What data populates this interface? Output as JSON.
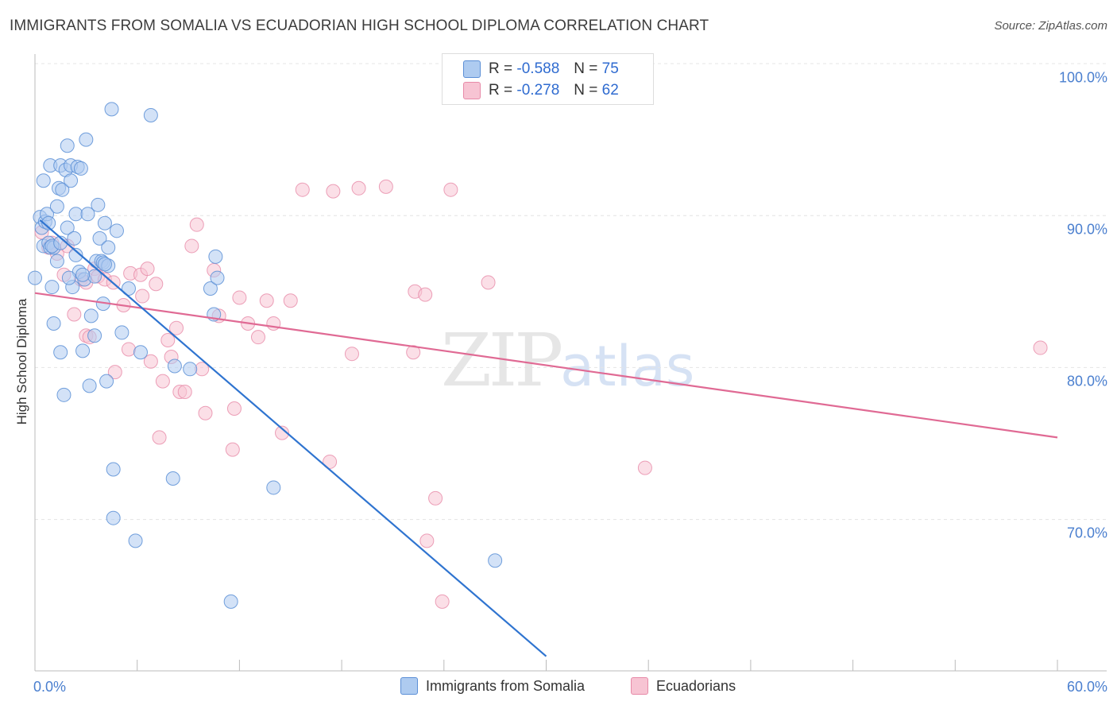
{
  "header": {
    "title": "IMMIGRANTS FROM SOMALIA VS ECUADORIAN HIGH SCHOOL DIPLOMA CORRELATION CHART",
    "source": "Source: ZipAtlas.com"
  },
  "watermark": {
    "zip": "ZIP",
    "atlas": "atlas"
  },
  "legend": {
    "somalia": {
      "r_label": "R = ",
      "r_value": "-0.588",
      "n_label": "N = ",
      "n_value": "75"
    },
    "ecuador": {
      "r_label": "R = ",
      "r_value": "-0.278",
      "n_label": "N = ",
      "n_value": "62"
    }
  },
  "colors": {
    "somalia_fill": "#aecbf0",
    "somalia_stroke": "#5b8fd6",
    "somalia_line": "#2f74d0",
    "ecuador_fill": "#f7c4d3",
    "ecuador_stroke": "#e78aa8",
    "ecuador_line": "#e06a94"
  },
  "chart_data": {
    "type": "scatter",
    "title": "IMMIGRANTS FROM SOMALIA VS ECUADORIAN HIGH SCHOOL DIPLOMA CORRELATION CHART",
    "xlabel": "",
    "ylabel": "High School Diploma",
    "xlim": [
      0,
      60
    ],
    "ylim": [
      61,
      101.5
    ],
    "x_tick_labels": [
      "0.0%",
      "60.0%"
    ],
    "y_ticks": [
      70,
      80,
      90,
      100
    ],
    "y_tick_labels": [
      "70.0%",
      "80.0%",
      "90.0%",
      "100.0%"
    ],
    "grid": true,
    "legend_position": "top-center",
    "series": [
      {
        "name": "Immigrants from Somalia",
        "trend": {
          "x": [
            0.3,
            30.0
          ],
          "y": [
            89.7,
            61.0
          ]
        },
        "points": [
          [
            0.0,
            85.9
          ],
          [
            0.3,
            89.9
          ],
          [
            0.4,
            89.2
          ],
          [
            0.5,
            92.3
          ],
          [
            0.5,
            88.0
          ],
          [
            0.6,
            89.6
          ],
          [
            0.7,
            90.1
          ],
          [
            0.8,
            88.2
          ],
          [
            0.9,
            87.9
          ],
          [
            0.9,
            93.3
          ],
          [
            1.0,
            85.3
          ],
          [
            1.1,
            82.9
          ],
          [
            1.1,
            87.9
          ],
          [
            1.3,
            87.0
          ],
          [
            1.3,
            90.6
          ],
          [
            1.4,
            91.8
          ],
          [
            1.5,
            81.0
          ],
          [
            1.5,
            93.3
          ],
          [
            1.6,
            91.7
          ],
          [
            1.7,
            78.2
          ],
          [
            1.8,
            93.0
          ],
          [
            1.9,
            89.2
          ],
          [
            1.9,
            94.6
          ],
          [
            2.1,
            92.3
          ],
          [
            2.1,
            93.3
          ],
          [
            2.2,
            85.3
          ],
          [
            2.3,
            88.5
          ],
          [
            2.4,
            90.1
          ],
          [
            2.4,
            87.4
          ],
          [
            2.5,
            93.2
          ],
          [
            2.6,
            86.3
          ],
          [
            2.7,
            93.1
          ],
          [
            2.8,
            81.1
          ],
          [
            2.9,
            85.8
          ],
          [
            3.0,
            95.0
          ],
          [
            3.1,
            90.1
          ],
          [
            3.2,
            78.8
          ],
          [
            3.3,
            83.4
          ],
          [
            3.5,
            86.0
          ],
          [
            3.6,
            87.0
          ],
          [
            3.7,
            90.7
          ],
          [
            3.8,
            88.5
          ],
          [
            3.9,
            87.0
          ],
          [
            4.0,
            86.9
          ],
          [
            4.0,
            84.2
          ],
          [
            4.1,
            89.5
          ],
          [
            4.2,
            79.1
          ],
          [
            4.3,
            87.9
          ],
          [
            4.3,
            86.7
          ],
          [
            4.5,
            97.0
          ],
          [
            4.6,
            73.3
          ],
          [
            4.6,
            70.1
          ],
          [
            4.8,
            89.0
          ],
          [
            5.1,
            82.3
          ],
          [
            5.5,
            85.2
          ],
          [
            5.9,
            68.6
          ],
          [
            6.2,
            81.0
          ],
          [
            6.8,
            96.6
          ],
          [
            8.2,
            80.1
          ],
          [
            8.1,
            72.7
          ],
          [
            9.1,
            79.9
          ],
          [
            10.3,
            85.2
          ],
          [
            10.5,
            83.5
          ],
          [
            10.6,
            87.3
          ],
          [
            10.7,
            85.9
          ],
          [
            11.5,
            64.6
          ],
          [
            14.0,
            72.1
          ],
          [
            27.0,
            67.3
          ],
          [
            0.8,
            89.5
          ],
          [
            1.0,
            88.0
          ],
          [
            2.0,
            85.9
          ],
          [
            1.5,
            88.2
          ],
          [
            3.5,
            82.1
          ],
          [
            2.8,
            86.1
          ],
          [
            4.1,
            86.8
          ]
        ]
      },
      {
        "name": "Ecuadorians",
        "trend": {
          "x": [
            0.0,
            60.0
          ],
          "y": [
            84.9,
            75.4
          ]
        },
        "points": [
          [
            0.4,
            88.9
          ],
          [
            0.8,
            87.9
          ],
          [
            1.0,
            88.2
          ],
          [
            1.3,
            87.5
          ],
          [
            1.7,
            86.1
          ],
          [
            2.3,
            83.5
          ],
          [
            2.7,
            85.8
          ],
          [
            3.0,
            82.1
          ],
          [
            3.2,
            82.0
          ],
          [
            3.5,
            86.5
          ],
          [
            3.7,
            86.0
          ],
          [
            4.1,
            85.8
          ],
          [
            4.6,
            85.6
          ],
          [
            4.7,
            79.7
          ],
          [
            5.2,
            84.1
          ],
          [
            5.5,
            81.2
          ],
          [
            5.6,
            86.2
          ],
          [
            6.2,
            86.1
          ],
          [
            6.3,
            84.7
          ],
          [
            6.6,
            86.5
          ],
          [
            6.8,
            80.4
          ],
          [
            7.1,
            85.5
          ],
          [
            7.3,
            75.4
          ],
          [
            7.5,
            79.1
          ],
          [
            7.8,
            81.8
          ],
          [
            8.0,
            80.7
          ],
          [
            8.3,
            82.6
          ],
          [
            8.5,
            78.4
          ],
          [
            8.8,
            78.4
          ],
          [
            9.2,
            88.0
          ],
          [
            9.5,
            89.4
          ],
          [
            9.8,
            79.9
          ],
          [
            10.0,
            77.0
          ],
          [
            10.5,
            86.4
          ],
          [
            10.8,
            83.4
          ],
          [
            11.6,
            74.6
          ],
          [
            11.7,
            77.3
          ],
          [
            12.0,
            84.6
          ],
          [
            12.5,
            82.9
          ],
          [
            13.1,
            82.0
          ],
          [
            13.6,
            84.4
          ],
          [
            14.0,
            82.9
          ],
          [
            14.5,
            75.7
          ],
          [
            15.0,
            84.4
          ],
          [
            15.7,
            91.7
          ],
          [
            17.3,
            73.8
          ],
          [
            17.5,
            91.6
          ],
          [
            18.6,
            80.9
          ],
          [
            19.0,
            91.8
          ],
          [
            20.6,
            91.9
          ],
          [
            22.2,
            81.0
          ],
          [
            22.3,
            85.0
          ],
          [
            22.9,
            84.8
          ],
          [
            23.0,
            68.6
          ],
          [
            23.5,
            71.4
          ],
          [
            23.9,
            64.6
          ],
          [
            24.4,
            91.7
          ],
          [
            26.6,
            85.6
          ],
          [
            35.8,
            73.4
          ],
          [
            59.0,
            81.3
          ],
          [
            1.9,
            88.0
          ],
          [
            3.0,
            85.6
          ]
        ]
      }
    ]
  },
  "bottom_legend": {
    "somalia_label": "Immigrants from Somalia",
    "ecuador_label": "Ecuadorians"
  }
}
